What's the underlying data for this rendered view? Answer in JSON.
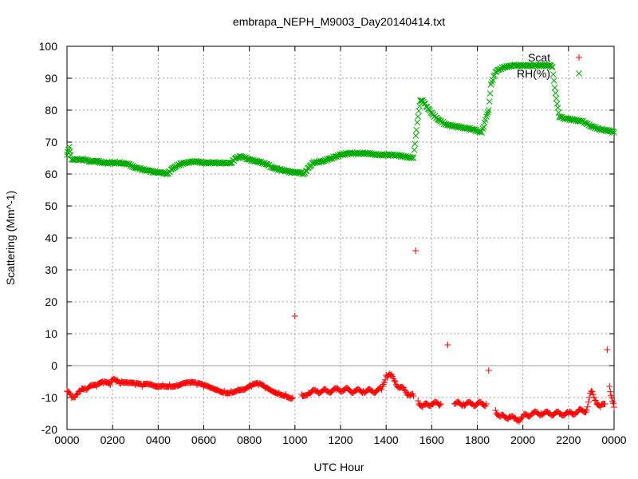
{
  "chart_data": {
    "type": "scatter",
    "title": "embrapa_NEPH_M9003_Day20140414.txt",
    "xlabel": "UTC Hour",
    "ylabel": "Scattering (Mm^-1)",
    "xlim": [
      0,
      2400
    ],
    "ylim": [
      -20,
      100
    ],
    "xtick_labels": [
      "0000",
      "0200",
      "0400",
      "0600",
      "0800",
      "1000",
      "1200",
      "1400",
      "1600",
      "1800",
      "2000",
      "2200",
      "0000"
    ],
    "ytick_labels": [
      "-20",
      "-10",
      "0",
      "10",
      "20",
      "30",
      "40",
      "50",
      "60",
      "70",
      "80",
      "90",
      "100"
    ],
    "grid": true,
    "legend_position": "top-right",
    "series": [
      {
        "name": "Scat",
        "marker": "plus",
        "color": "#ff0000",
        "x": [
          0,
          20,
          40,
          60,
          80,
          100,
          130,
          160,
          190,
          200,
          215,
          240,
          270,
          300,
          330,
          360,
          390,
          420,
          450,
          480,
          510,
          540,
          570,
          600,
          630,
          660,
          690,
          720,
          750,
          780,
          810,
          840,
          870,
          900,
          930,
          960,
          990,
          1000,
          1030,
          1060,
          1100,
          1140,
          1180,
          1220,
          1260,
          1300,
          1340,
          1380,
          1400,
          1420,
          1440,
          1460,
          1480,
          1500,
          1520,
          1530,
          1540,
          1560,
          1580,
          1600,
          1640,
          1670,
          1700,
          1740,
          1780,
          1820,
          1840,
          1850,
          1880,
          1900,
          1920,
          1940,
          1960,
          1980,
          2000,
          2040,
          2080,
          2120,
          2160,
          2200,
          2240,
          2260,
          2280,
          2300,
          2320,
          2340,
          2360,
          2370,
          2380,
          2390,
          2400
        ],
        "y": [
          -8,
          -10,
          -9,
          -8,
          -7,
          -6.5,
          -6.5,
          -5.5,
          -6,
          -4.5,
          -5,
          -5,
          -5.5,
          -6,
          -6.5,
          -6,
          -6.5,
          -6,
          -6,
          -6,
          -5.5,
          -5.5,
          -6,
          -6.5,
          -7,
          -7.5,
          -8,
          -8,
          -7.5,
          -7.5,
          -6.5,
          -6,
          -7,
          -8,
          -8.5,
          -9,
          -10,
          15.5,
          -9,
          -8.5,
          -8,
          -8,
          -7.5,
          -7.5,
          -8,
          -8,
          -8,
          -7.5,
          -3,
          -3,
          -5,
          -7,
          -7.5,
          -9,
          -9.5,
          36,
          -11,
          -13,
          -12,
          -12,
          -12,
          6.5,
          -12,
          -12,
          -12,
          -12,
          -12,
          -1.5,
          -14,
          -16,
          -16,
          -16,
          -16.5,
          -17,
          -16,
          -15,
          -15,
          -15,
          -15,
          -15,
          -14.5,
          -14,
          -14,
          -8,
          -11,
          -13,
          -12,
          5,
          -6.5,
          -10,
          -13
        ]
      },
      {
        "name": "RH(%)",
        "marker": "cross",
        "color": "#00aa00",
        "x": [
          0,
          10,
          20,
          40,
          60,
          80,
          100,
          130,
          160,
          200,
          240,
          270,
          300,
          330,
          360,
          390,
          420,
          440,
          460,
          490,
          520,
          560,
          600,
          640,
          680,
          700,
          720,
          740,
          760,
          780,
          800,
          830,
          860,
          880,
          900,
          930,
          960,
          990,
          1020,
          1040,
          1060,
          1080,
          1120,
          1160,
          1200,
          1240,
          1280,
          1320,
          1360,
          1400,
          1440,
          1480,
          1520,
          1530,
          1540,
          1550,
          1560,
          1580,
          1600,
          1630,
          1660,
          1700,
          1740,
          1780,
          1820,
          1840,
          1850,
          1860,
          1880,
          1900,
          1920,
          1960,
          2000,
          2040,
          2080,
          2120,
          2130,
          2140,
          2150,
          2160,
          2180,
          2220,
          2260,
          2300,
          2340,
          2380,
          2400
        ],
        "y": [
          66,
          68.5,
          64.5,
          64.5,
          64.5,
          64.5,
          64,
          64,
          63.5,
          63.5,
          63.5,
          63,
          62,
          61.5,
          61,
          60.5,
          60.5,
          60,
          61.5,
          63,
          63.5,
          64,
          63.5,
          63.5,
          63.5,
          63.5,
          63.5,
          65,
          65.5,
          65,
          64.5,
          64,
          63.5,
          63,
          62,
          61.5,
          61,
          60.5,
          60.5,
          60,
          62,
          63.5,
          64,
          65,
          66,
          66.5,
          66.5,
          66.5,
          66,
          66,
          66,
          65.5,
          65,
          72,
          78,
          83,
          83,
          81,
          79,
          77,
          75.5,
          75,
          74.5,
          74,
          73,
          78,
          80,
          88,
          92,
          93,
          93.5,
          94,
          94,
          94,
          94,
          94,
          93.5,
          87,
          82,
          78,
          77.5,
          77,
          76.5,
          75,
          74,
          73.5,
          73
        ]
      }
    ]
  }
}
